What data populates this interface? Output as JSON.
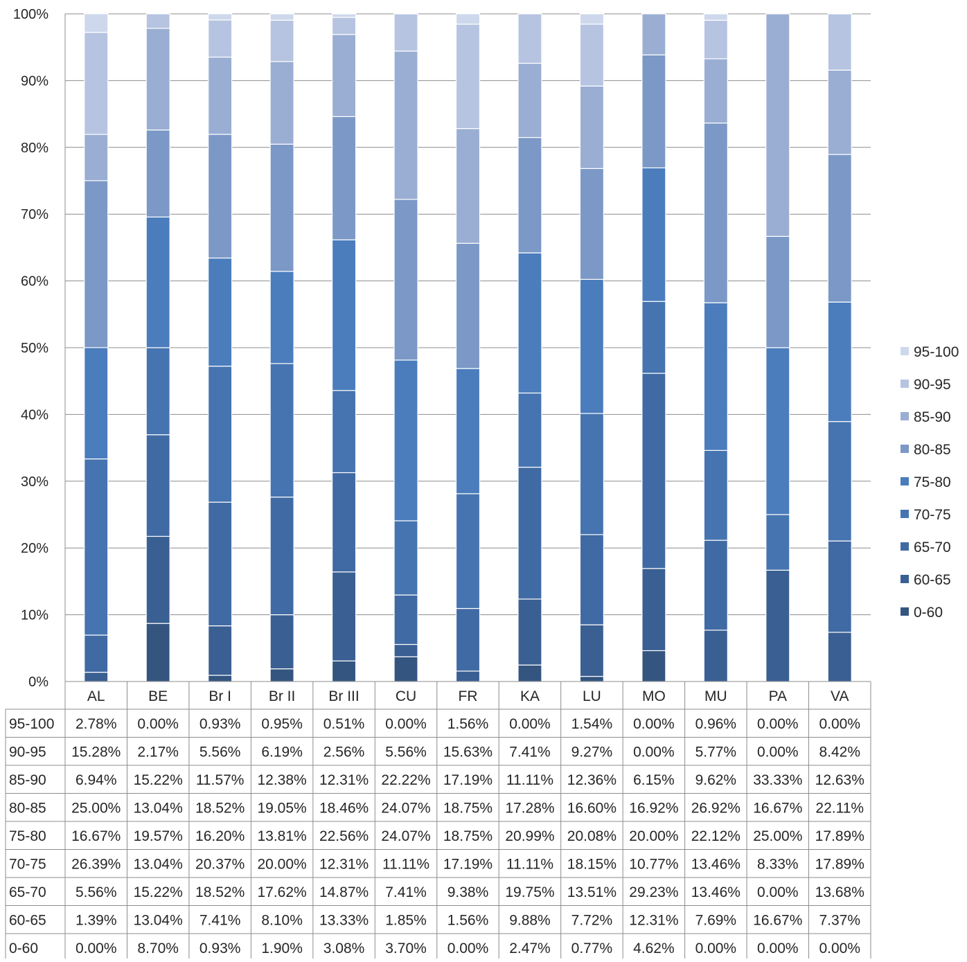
{
  "chart_data": {
    "type": "bar",
    "stacked": true,
    "percent_stacked": true,
    "title": "",
    "xlabel": "",
    "ylabel": "",
    "ylim": [
      0,
      100
    ],
    "y_ticks": [
      "0%",
      "10%",
      "20%",
      "30%",
      "40%",
      "50%",
      "60%",
      "70%",
      "80%",
      "90%",
      "100%"
    ],
    "grid": true,
    "legend_position": "right",
    "data_table": true,
    "categories": [
      "AL",
      "BE",
      "Br I",
      "Br II",
      "Br III",
      "CU",
      "FR",
      "KA",
      "LU",
      "MO",
      "MU",
      "PA",
      "VA"
    ],
    "series": [
      {
        "name": "0-60",
        "color": "#34557f",
        "values": [
          0.0,
          8.7,
          0.93,
          1.9,
          3.08,
          3.7,
          0.0,
          2.47,
          0.77,
          4.62,
          0.0,
          0.0,
          0.0
        ],
        "labels": [
          "0.00%",
          "8.70%",
          "0.93%",
          "1.90%",
          "3.08%",
          "3.70%",
          "0.00%",
          "2.47%",
          "0.77%",
          "4.62%",
          "0.00%",
          "0.00%",
          "0.00%"
        ]
      },
      {
        "name": "60-65",
        "color": "#3a5f92",
        "values": [
          1.39,
          13.04,
          7.41,
          8.1,
          13.33,
          1.85,
          1.56,
          9.88,
          7.72,
          12.31,
          7.69,
          16.67,
          7.37
        ],
        "labels": [
          "1.39%",
          "13.04%",
          "7.41%",
          "8.10%",
          "13.33%",
          "1.85%",
          "1.56%",
          "9.88%",
          "7.72%",
          "12.31%",
          "7.69%",
          "16.67%",
          "7.37%"
        ]
      },
      {
        "name": "65-70",
        "color": "#406aa3",
        "values": [
          5.56,
          15.22,
          18.52,
          17.62,
          14.87,
          7.41,
          9.38,
          19.75,
          13.51,
          29.23,
          13.46,
          0.0,
          13.68
        ],
        "labels": [
          "5.56%",
          "15.22%",
          "18.52%",
          "17.62%",
          "14.87%",
          "7.41%",
          "9.38%",
          "19.75%",
          "13.51%",
          "29.23%",
          "13.46%",
          "0.00%",
          "13.68%"
        ]
      },
      {
        "name": "70-75",
        "color": "#4674b0",
        "values": [
          26.39,
          13.04,
          20.37,
          20.0,
          12.31,
          11.11,
          17.19,
          11.11,
          18.15,
          10.77,
          13.46,
          8.33,
          17.89
        ],
        "labels": [
          "26.39%",
          "13.04%",
          "20.37%",
          "20.00%",
          "12.31%",
          "11.11%",
          "17.19%",
          "11.11%",
          "18.15%",
          "10.77%",
          "13.46%",
          "8.33%",
          "17.89%"
        ]
      },
      {
        "name": "75-80",
        "color": "#4b7dbd",
        "values": [
          16.67,
          19.57,
          16.2,
          13.81,
          22.56,
          24.07,
          18.75,
          20.99,
          20.08,
          20.0,
          22.12,
          25.0,
          17.89
        ],
        "labels": [
          "16.67%",
          "19.57%",
          "16.20%",
          "13.81%",
          "22.56%",
          "24.07%",
          "18.75%",
          "20.99%",
          "20.08%",
          "20.00%",
          "22.12%",
          "25.00%",
          "17.89%"
        ]
      },
      {
        "name": "80-85",
        "color": "#7b98c6",
        "values": [
          25.0,
          13.04,
          18.52,
          19.05,
          18.46,
          24.07,
          18.75,
          17.28,
          16.6,
          16.92,
          26.92,
          16.67,
          22.11
        ],
        "labels": [
          "25.00%",
          "13.04%",
          "18.52%",
          "19.05%",
          "18.46%",
          "24.07%",
          "18.75%",
          "17.28%",
          "16.60%",
          "16.92%",
          "26.92%",
          "16.67%",
          "22.11%"
        ]
      },
      {
        "name": "85-90",
        "color": "#9aaed3",
        "values": [
          6.94,
          15.22,
          11.57,
          12.38,
          12.31,
          22.22,
          17.19,
          11.11,
          12.36,
          6.15,
          9.62,
          33.33,
          12.63
        ],
        "labels": [
          "6.94%",
          "15.22%",
          "11.57%",
          "12.38%",
          "12.31%",
          "22.22%",
          "17.19%",
          "11.11%",
          "12.36%",
          "6.15%",
          "9.62%",
          "33.33%",
          "12.63%"
        ]
      },
      {
        "name": "90-95",
        "color": "#b6c4e1",
        "values": [
          15.28,
          2.17,
          5.56,
          6.19,
          2.56,
          5.56,
          15.63,
          7.41,
          9.27,
          0.0,
          5.77,
          0.0,
          8.42
        ],
        "labels": [
          "15.28%",
          "2.17%",
          "5.56%",
          "6.19%",
          "2.56%",
          "5.56%",
          "15.63%",
          "7.41%",
          "9.27%",
          "0.00%",
          "5.77%",
          "0.00%",
          "8.42%"
        ]
      },
      {
        "name": "95-100",
        "color": "#ced8ec",
        "values": [
          2.78,
          0.0,
          0.93,
          0.95,
          0.51,
          0.0,
          1.56,
          0.0,
          1.54,
          0.0,
          0.96,
          0.0,
          0.0
        ],
        "labels": [
          "2.78%",
          "0.00%",
          "0.93%",
          "0.95%",
          "0.51%",
          "0.00%",
          "1.56%",
          "0.00%",
          "1.54%",
          "0.00%",
          "0.96%",
          "0.00%",
          "0.00%"
        ]
      }
    ]
  }
}
